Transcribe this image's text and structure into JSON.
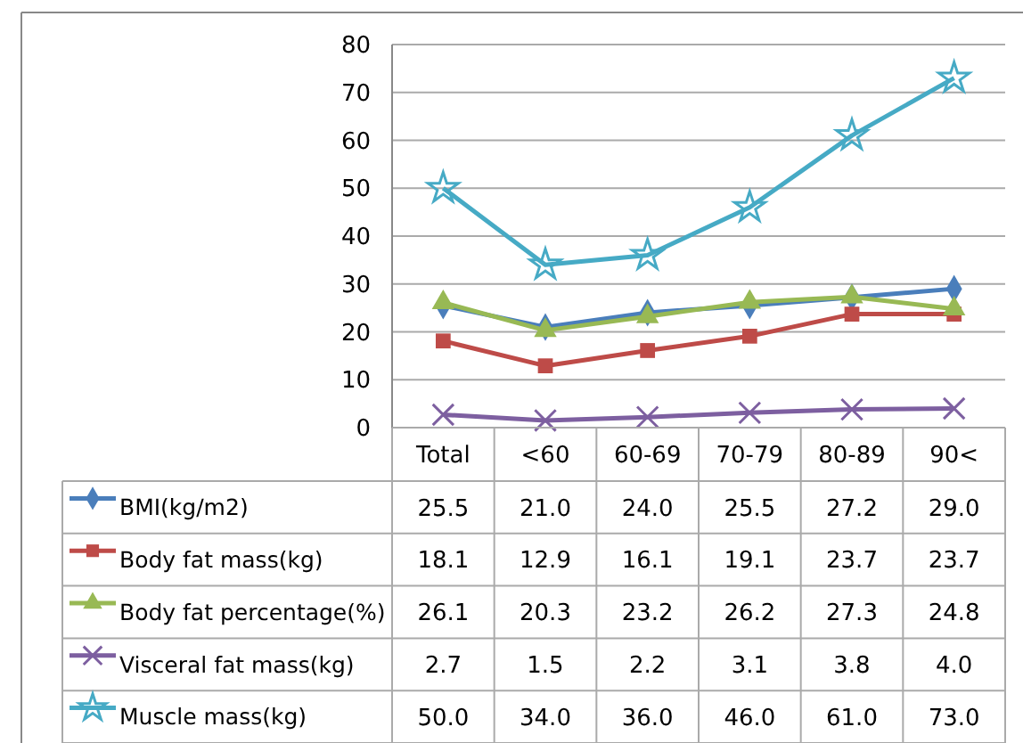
{
  "chart_data": {
    "type": "line",
    "categories": [
      "Total",
      "<60",
      "60-69",
      "70-79",
      "80-89",
      "90<"
    ],
    "series": [
      {
        "name": "BMI(kg/m2)",
        "color": "#4a7ebb",
        "marker": "diamond",
        "values": [
          25.5,
          21.0,
          24.0,
          25.5,
          27.2,
          29.0
        ],
        "value_labels": [
          "25.5",
          "21.0",
          "24.0",
          "25.5",
          "27.2",
          "29.0"
        ]
      },
      {
        "name": "Body fat mass(kg)",
        "color": "#be4b48",
        "marker": "square",
        "values": [
          18.1,
          12.9,
          16.1,
          19.1,
          23.7,
          23.7
        ],
        "value_labels": [
          "18.1",
          "12.9",
          "16.1",
          "19.1",
          "23.7",
          "23.7"
        ]
      },
      {
        "name": "Body fat percentage(%)",
        "color": "#98b954",
        "marker": "triangle",
        "values": [
          26.1,
          20.3,
          23.2,
          26.2,
          27.3,
          24.8
        ],
        "value_labels": [
          "26.1",
          "20.3",
          "23.2",
          "26.2",
          "27.3",
          "24.8"
        ]
      },
      {
        "name": "Visceral fat mass(kg)",
        "color": "#7d5fa0",
        "marker": "cross",
        "values": [
          2.7,
          1.5,
          2.2,
          3.1,
          3.8,
          4.0
        ],
        "value_labels": [
          "2.7",
          "1.5",
          "2.2",
          "3.1",
          "3.8",
          "4.0"
        ]
      },
      {
        "name": "Muscle mass(kg)",
        "color": "#46aac5",
        "marker": "star",
        "values": [
          50.0,
          34.0,
          36.0,
          46.0,
          61.0,
          73.0
        ],
        "value_labels": [
          "50.0",
          "34.0",
          "36.0",
          "46.0",
          "61.0",
          "73.0"
        ]
      }
    ],
    "ylim": [
      0,
      80
    ],
    "yticks": [
      0,
      10,
      20,
      30,
      40,
      50,
      60,
      70,
      80
    ],
    "grid": "y",
    "legend": "bottom"
  }
}
